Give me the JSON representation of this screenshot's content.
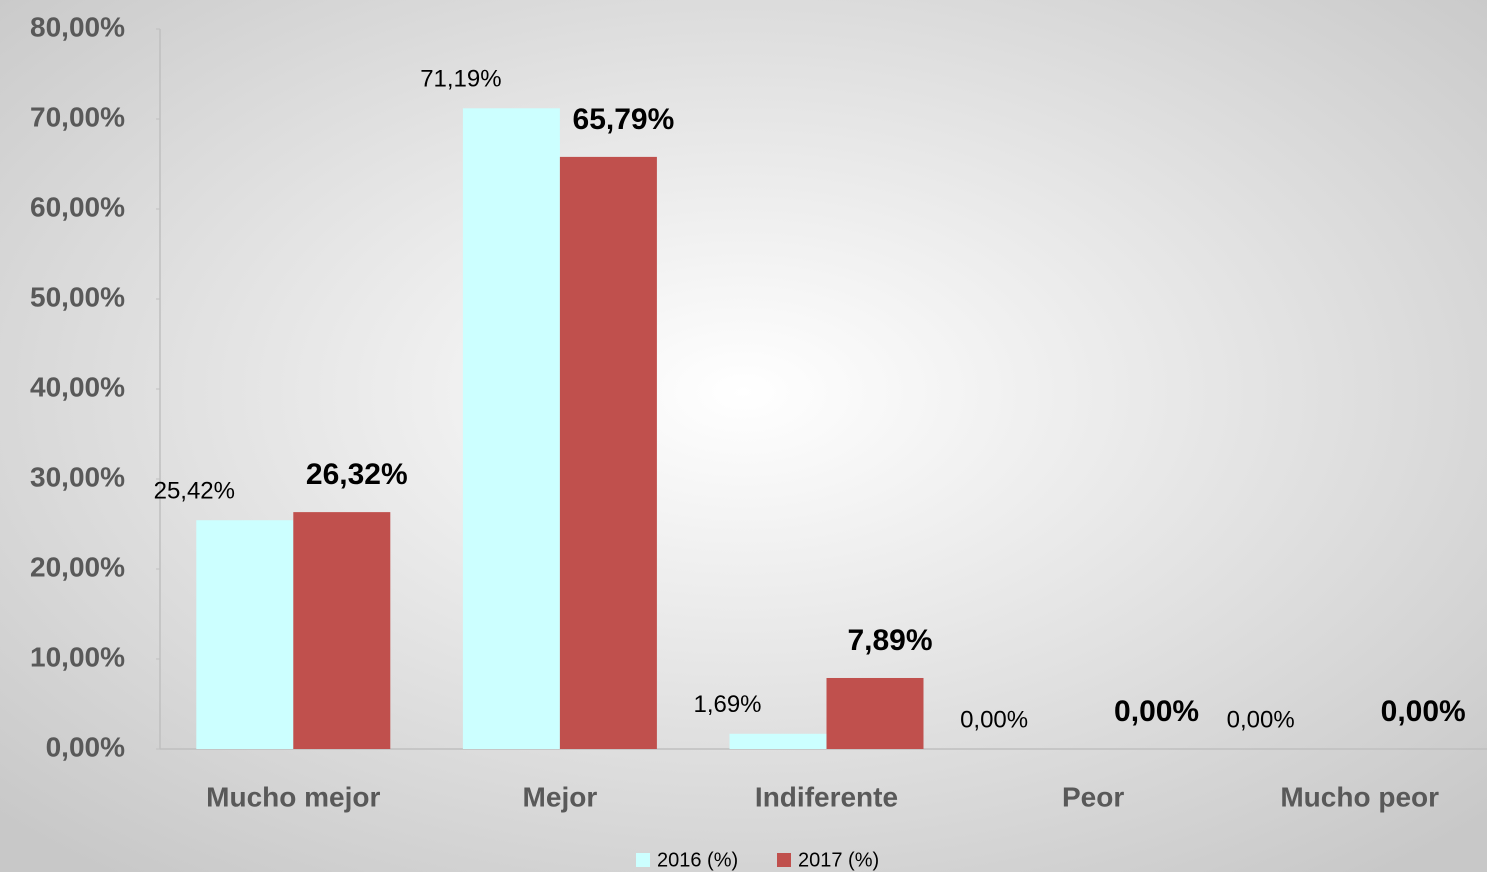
{
  "chart_data": {
    "type": "bar",
    "categories": [
      "Mucho mejor",
      "Mejor",
      "Indiferente",
      "Peor",
      "Mucho peor"
    ],
    "series": [
      {
        "name": "2016 (%)",
        "color": "#ccffff",
        "values": [
          25.42,
          71.19,
          1.69,
          0,
          0
        ],
        "value_labels": [
          "25,42%",
          "71,19%",
          "1,69%",
          "0,00%",
          "0,00%"
        ]
      },
      {
        "name": "2017 (%)",
        "color": "#c0504d",
        "values": [
          26.32,
          65.79,
          7.89,
          0,
          0
        ],
        "value_labels": [
          "26,32%",
          "65,79%",
          "7,89%",
          "0,00%",
          "0,00%"
        ]
      }
    ],
    "ylim": [
      0,
      80
    ],
    "yticks": [
      {
        "value": 0,
        "label": "0,00%"
      },
      {
        "value": 10,
        "label": "10,00%"
      },
      {
        "value": 20,
        "label": "20,00%"
      },
      {
        "value": 30,
        "label": "30,00%"
      },
      {
        "value": 40,
        "label": "40,00%"
      },
      {
        "value": 50,
        "label": "50,00%"
      },
      {
        "value": 60,
        "label": "60,00%"
      },
      {
        "value": 70,
        "label": "70,00%"
      },
      {
        "value": 80,
        "label": "80,00%"
      }
    ],
    "grid": false,
    "legend": "bottom"
  }
}
